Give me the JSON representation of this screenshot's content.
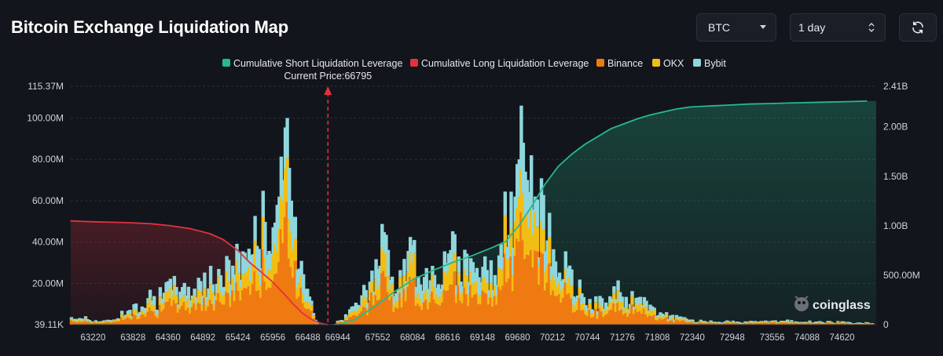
{
  "header": {
    "title": "Bitcoin Exchange Liquidation Map",
    "symbol": "BTC",
    "range": "1 day"
  },
  "colors": {
    "background": "#13151c",
    "short_cumulative": "#26b98a",
    "long_cumulative": "#e0323f",
    "binance": "#f07a12",
    "okx": "#f2be16",
    "bybit": "#8ed7dd",
    "grid": "#2a2e38"
  },
  "icons": {
    "refresh": "refresh-icon",
    "select": "chevron-down-icon",
    "stepper": "up-down-icon",
    "watermark": "coinglass-logo-icon"
  },
  "watermark": "coinglass",
  "chart_data": {
    "type": "bar",
    "legend": [
      "Cumulative Short Liquidation Leverage",
      "Cumulative Long Liquidation Leverage",
      "Binance",
      "OKX",
      "Bybit"
    ],
    "legend_position": "top-center",
    "current_price_label": "Current Price:66795",
    "current_price": 66795,
    "x_ticks": [
      "63220",
      "63828",
      "64360",
      "64892",
      "65424",
      "65956",
      "66488",
      "66944",
      "67552",
      "68084",
      "68616",
      "69148",
      "69680",
      "70212",
      "70744",
      "71276",
      "71808",
      "72340",
      "72948",
      "73556",
      "74088",
      "74620"
    ],
    "x_range": [
      62880,
      75140
    ],
    "y_left_ticks": [
      "39.11K",
      "20.00M",
      "40.00M",
      "60.00M",
      "80.00M",
      "100.00M",
      "115.37M"
    ],
    "y_left_range": [
      0.039,
      115.37
    ],
    "y_left_unit": "M",
    "y_right_ticks": [
      "0",
      "500.00M",
      "1.00B",
      "1.50B",
      "2.00B",
      "2.41B"
    ],
    "y_right_range": [
      0,
      2.41
    ],
    "y_right_unit": "B",
    "grid": true,
    "stack_order": [
      "Binance",
      "OKX",
      "Bybit"
    ],
    "profile_points": [
      [
        62890,
        3
      ],
      [
        63040,
        4
      ],
      [
        63150,
        3
      ],
      [
        63280,
        2
      ],
      [
        63450,
        2
      ],
      [
        63600,
        4
      ],
      [
        63700,
        7
      ],
      [
        63800,
        6
      ],
      [
        63900,
        10
      ],
      [
        64000,
        13
      ],
      [
        64100,
        16
      ],
      [
        64200,
        12
      ],
      [
        64300,
        17
      ],
      [
        64400,
        18
      ],
      [
        64450,
        20
      ],
      [
        64550,
        16
      ],
      [
        64650,
        18
      ],
      [
        64750,
        19
      ],
      [
        64850,
        22
      ],
      [
        64950,
        21
      ],
      [
        65050,
        23
      ],
      [
        65150,
        26
      ],
      [
        65250,
        27
      ],
      [
        65350,
        30
      ],
      [
        65420,
        33
      ],
      [
        65480,
        36
      ],
      [
        65550,
        38
      ],
      [
        65620,
        42
      ],
      [
        65700,
        44
      ],
      [
        65780,
        50
      ],
      [
        65850,
        55
      ],
      [
        65920,
        50
      ],
      [
        65980,
        55
      ],
      [
        66050,
        62
      ],
      [
        66120,
        70
      ],
      [
        66180,
        100
      ],
      [
        66230,
        60
      ],
      [
        66300,
        50
      ],
      [
        66380,
        35
      ],
      [
        66440,
        30
      ],
      [
        66490,
        22
      ],
      [
        66530,
        16
      ],
      [
        66570,
        8
      ],
      [
        66610,
        3
      ],
      [
        66660,
        0
      ],
      [
        66900,
        0
      ],
      [
        66960,
        2
      ],
      [
        67020,
        3
      ],
      [
        67100,
        5
      ],
      [
        67200,
        10
      ],
      [
        67300,
        14
      ],
      [
        67400,
        18
      ],
      [
        67500,
        22
      ],
      [
        67560,
        28
      ],
      [
        67620,
        38
      ],
      [
        67660,
        45
      ],
      [
        67700,
        30
      ],
      [
        67760,
        22
      ],
      [
        67800,
        20
      ],
      [
        67900,
        22
      ],
      [
        68000,
        28
      ],
      [
        68060,
        40
      ],
      [
        68100,
        32
      ],
      [
        68160,
        30
      ],
      [
        68240,
        26
      ],
      [
        68320,
        27
      ],
      [
        68400,
        30
      ],
      [
        68480,
        28
      ],
      [
        68560,
        30
      ],
      [
        68640,
        33
      ],
      [
        68700,
        36
      ],
      [
        68760,
        34
      ],
      [
        68840,
        30
      ],
      [
        68900,
        34
      ],
      [
        68960,
        32
      ],
      [
        69040,
        30
      ],
      [
        69120,
        32
      ],
      [
        69200,
        26
      ],
      [
        69300,
        28
      ],
      [
        69400,
        30
      ],
      [
        69460,
        45
      ],
      [
        69520,
        58
      ],
      [
        69580,
        55
      ],
      [
        69640,
        62
      ],
      [
        69700,
        80
      ],
      [
        69740,
        106
      ],
      [
        69780,
        88
      ],
      [
        69830,
        70
      ],
      [
        69880,
        82
      ],
      [
        69940,
        62
      ],
      [
        69990,
        52
      ],
      [
        70040,
        56
      ],
      [
        70100,
        48
      ],
      [
        70160,
        42
      ],
      [
        70220,
        40
      ],
      [
        70280,
        38
      ],
      [
        70340,
        34
      ],
      [
        70420,
        28
      ],
      [
        70480,
        24
      ],
      [
        70540,
        20
      ],
      [
        70620,
        18
      ],
      [
        70700,
        15
      ],
      [
        70780,
        13
      ],
      [
        70860,
        11
      ],
      [
        70940,
        12
      ],
      [
        71020,
        11
      ],
      [
        71100,
        12
      ],
      [
        71180,
        18
      ],
      [
        71260,
        15
      ],
      [
        71340,
        11
      ],
      [
        71420,
        14
      ],
      [
        71500,
        12
      ],
      [
        71580,
        10
      ],
      [
        71660,
        11
      ],
      [
        71740,
        8
      ],
      [
        71820,
        7
      ],
      [
        71900,
        6
      ],
      [
        71980,
        5
      ],
      [
        72060,
        4
      ],
      [
        72200,
        3
      ],
      [
        72400,
        2
      ],
      [
        72700,
        2
      ],
      [
        73000,
        1.5
      ],
      [
        73300,
        1.5
      ],
      [
        73600,
        2
      ],
      [
        73900,
        2
      ],
      [
        74200,
        1.5
      ],
      [
        74500,
        1.5
      ],
      [
        74800,
        1
      ],
      [
        75100,
        1
      ]
    ],
    "cumulative_short": [
      [
        66944,
        0
      ],
      [
        67200,
        0.05
      ],
      [
        67500,
        0.18
      ],
      [
        67800,
        0.33
      ],
      [
        68100,
        0.46
      ],
      [
        68400,
        0.55
      ],
      [
        68700,
        0.63
      ],
      [
        69000,
        0.7
      ],
      [
        69300,
        0.78
      ],
      [
        69500,
        0.84
      ],
      [
        69700,
        1.0
      ],
      [
        69900,
        1.2
      ],
      [
        70100,
        1.42
      ],
      [
        70300,
        1.6
      ],
      [
        70500,
        1.72
      ],
      [
        70700,
        1.82
      ],
      [
        70900,
        1.9
      ],
      [
        71100,
        1.98
      ],
      [
        71300,
        2.03
      ],
      [
        71500,
        2.08
      ],
      [
        71700,
        2.12
      ],
      [
        71900,
        2.15
      ],
      [
        72100,
        2.18
      ],
      [
        72300,
        2.2
      ],
      [
        72600,
        2.21
      ],
      [
        72900,
        2.22
      ],
      [
        73200,
        2.23
      ],
      [
        73500,
        2.235
      ],
      [
        73800,
        2.24
      ],
      [
        74100,
        2.245
      ],
      [
        74400,
        2.25
      ],
      [
        74700,
        2.255
      ],
      [
        75000,
        2.26
      ]
    ],
    "cumulative_long": [
      [
        62880,
        1.05
      ],
      [
        63200,
        1.04
      ],
      [
        63500,
        1.035
      ],
      [
        63800,
        1.03
      ],
      [
        64100,
        1.02
      ],
      [
        64400,
        1.0
      ],
      [
        64700,
        0.97
      ],
      [
        65000,
        0.92
      ],
      [
        65200,
        0.86
      ],
      [
        65424,
        0.75
      ],
      [
        65600,
        0.63
      ],
      [
        65800,
        0.52
      ],
      [
        65956,
        0.43
      ],
      [
        66100,
        0.33
      ],
      [
        66250,
        0.22
      ],
      [
        66400,
        0.12
      ],
      [
        66550,
        0.05
      ],
      [
        66700,
        0.01
      ],
      [
        66795,
        0
      ]
    ]
  }
}
